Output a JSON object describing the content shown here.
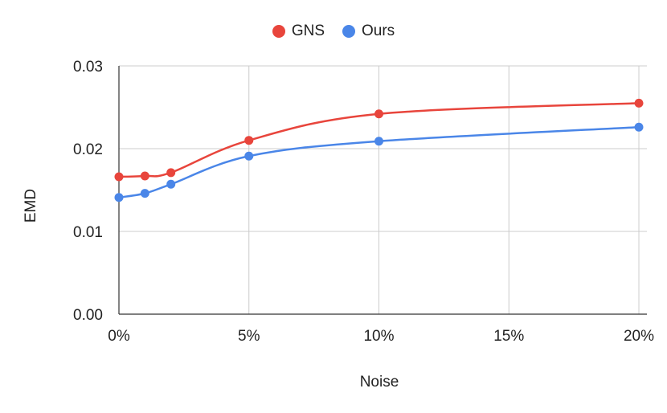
{
  "chart_data": {
    "type": "line",
    "xlabel": "Noise",
    "ylabel": "EMD",
    "x": [
      0,
      1,
      2,
      5,
      10,
      20
    ],
    "x_ticks": [
      0,
      5,
      10,
      15,
      20
    ],
    "x_tick_labels": [
      "0%",
      "5%",
      "10%",
      "15%",
      "20%"
    ],
    "xlim": [
      0,
      20
    ],
    "y_ticks": [
      0,
      0.01,
      0.02,
      0.03
    ],
    "y_tick_labels": [
      "0.00",
      "0.01",
      "0.02",
      "0.03"
    ],
    "ylim": [
      0,
      0.03
    ],
    "grid": true,
    "legend_position": "top",
    "series": [
      {
        "name": "GNS",
        "color": "#e8453c",
        "values": [
          0.0166,
          0.0167,
          0.0171,
          0.021,
          0.0242,
          0.0255
        ]
      },
      {
        "name": "Ours",
        "color": "#4a86e8",
        "values": [
          0.0141,
          0.0146,
          0.0157,
          0.0191,
          0.0209,
          0.0226
        ]
      }
    ]
  }
}
